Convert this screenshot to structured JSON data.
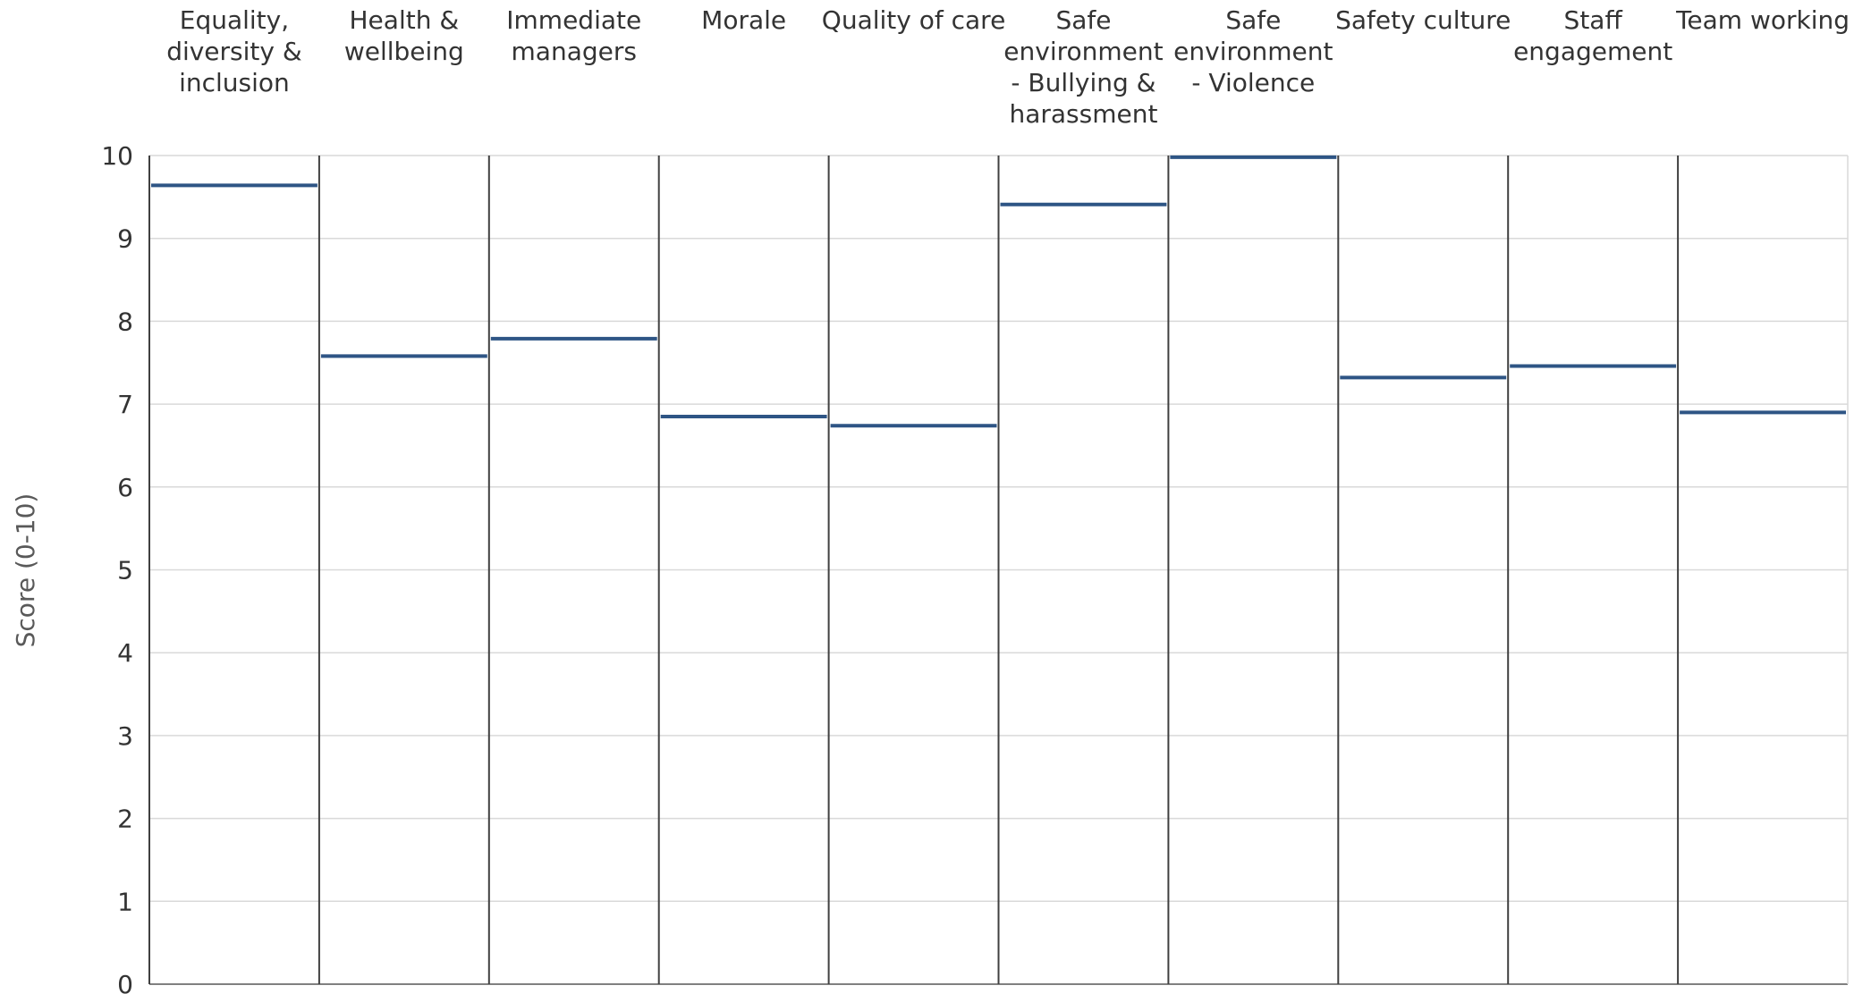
{
  "chart_data": {
    "type": "bar",
    "categories": [
      [
        "Equality,",
        "diversity &",
        "inclusion"
      ],
      [
        "Health &",
        "wellbeing"
      ],
      [
        "Immediate",
        "managers"
      ],
      [
        "Morale"
      ],
      [
        "Quality of care"
      ],
      [
        "Safe",
        "environment",
        "- Bullying &",
        "harassment"
      ],
      [
        "Safe",
        "environment",
        "- Violence"
      ],
      [
        "Safety culture"
      ],
      [
        "Staff",
        "engagement"
      ],
      [
        "Team working"
      ]
    ],
    "values": [
      9.64,
      7.58,
      7.79,
      6.85,
      6.74,
      9.41,
      9.98,
      7.32,
      7.46,
      6.9
    ],
    "ylabel": "Score (0-10)",
    "ylim": [
      0,
      10
    ],
    "yticks": [
      "0",
      "1",
      "2",
      "3",
      "4",
      "5",
      "6",
      "7",
      "8",
      "9",
      "10"
    ],
    "grid": true,
    "colors": {
      "marker": "#2e5585",
      "grid": "#d9d9d9",
      "divider": "#404040",
      "axis": "#808080"
    }
  }
}
